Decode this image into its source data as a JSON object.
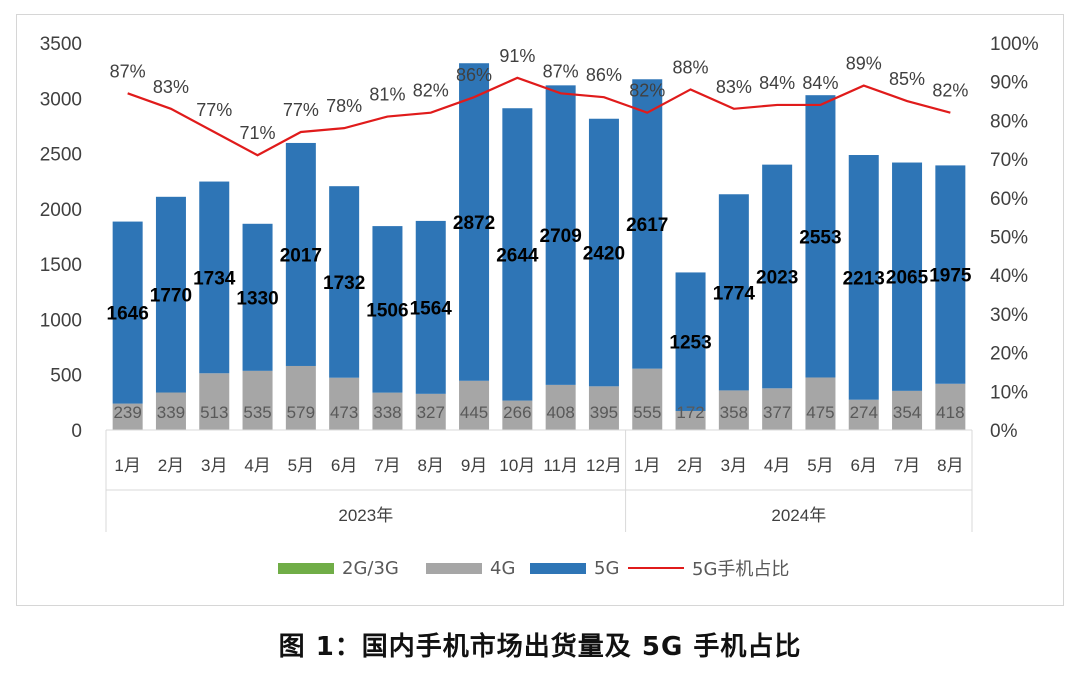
{
  "caption": "图 1：国内手机市场出货量及 5G 手机占比",
  "colors": {
    "2g3g": "#70ad47",
    "4g": "#a6a6a6",
    "5g": "#2e75b6",
    "ratio": "#e01b1b"
  },
  "legend": {
    "g23": "2G/3G",
    "g4": "4G",
    "g5": "5G",
    "ratio": "5G手机占比"
  },
  "chart_data": {
    "type": "bar",
    "categories": [
      "1月",
      "2月",
      "3月",
      "4月",
      "5月",
      "6月",
      "7月",
      "8月",
      "9月",
      "10月",
      "11月",
      "12月",
      "1月",
      "2月",
      "3月",
      "4月",
      "5月",
      "6月",
      "7月",
      "8月"
    ],
    "groups": [
      {
        "label": "2023年",
        "count": 12
      },
      {
        "label": "2024年",
        "count": 8
      }
    ],
    "series": [
      {
        "name": "4G",
        "type": "bar",
        "stacked": true,
        "values": [
          239,
          339,
          513,
          535,
          579,
          473,
          338,
          327,
          445,
          266,
          408,
          395,
          555,
          172,
          358,
          377,
          475,
          274,
          354,
          418
        ]
      },
      {
        "name": "5G",
        "type": "bar",
        "stacked": true,
        "values": [
          1646,
          1770,
          1734,
          1330,
          2017,
          1732,
          1506,
          1564,
          2872,
          2644,
          2709,
          2420,
          2617,
          1253,
          1774,
          2023,
          2553,
          2213,
          2065,
          1975
        ]
      },
      {
        "name": "5G手机占比",
        "type": "line",
        "axis": "right",
        "values": [
          87,
          83,
          77,
          71,
          77,
          78,
          81,
          82,
          86,
          91,
          87,
          86,
          82,
          88,
          83,
          84,
          84,
          89,
          85,
          82
        ],
        "labels": [
          "87%",
          "83%",
          "77%",
          "71%",
          "77%",
          "78%",
          "81%",
          "82%",
          "86%",
          "91%",
          "87%",
          "86%",
          "82%",
          "88%",
          "83%",
          "84%",
          "84%",
          "89%",
          "85%",
          "82%"
        ]
      }
    ],
    "ylim": [
      0,
      3500
    ],
    "yticks": [
      "0",
      "500",
      "1000",
      "1500",
      "2000",
      "2500",
      "3000",
      "3500"
    ],
    "y2lim": [
      0,
      100
    ],
    "y2ticks": [
      "0%",
      "10%",
      "20%",
      "30%",
      "40%",
      "50%",
      "60%",
      "70%",
      "80%",
      "90%",
      "100%"
    ],
    "legend_position": "bottom",
    "grid": false
  }
}
